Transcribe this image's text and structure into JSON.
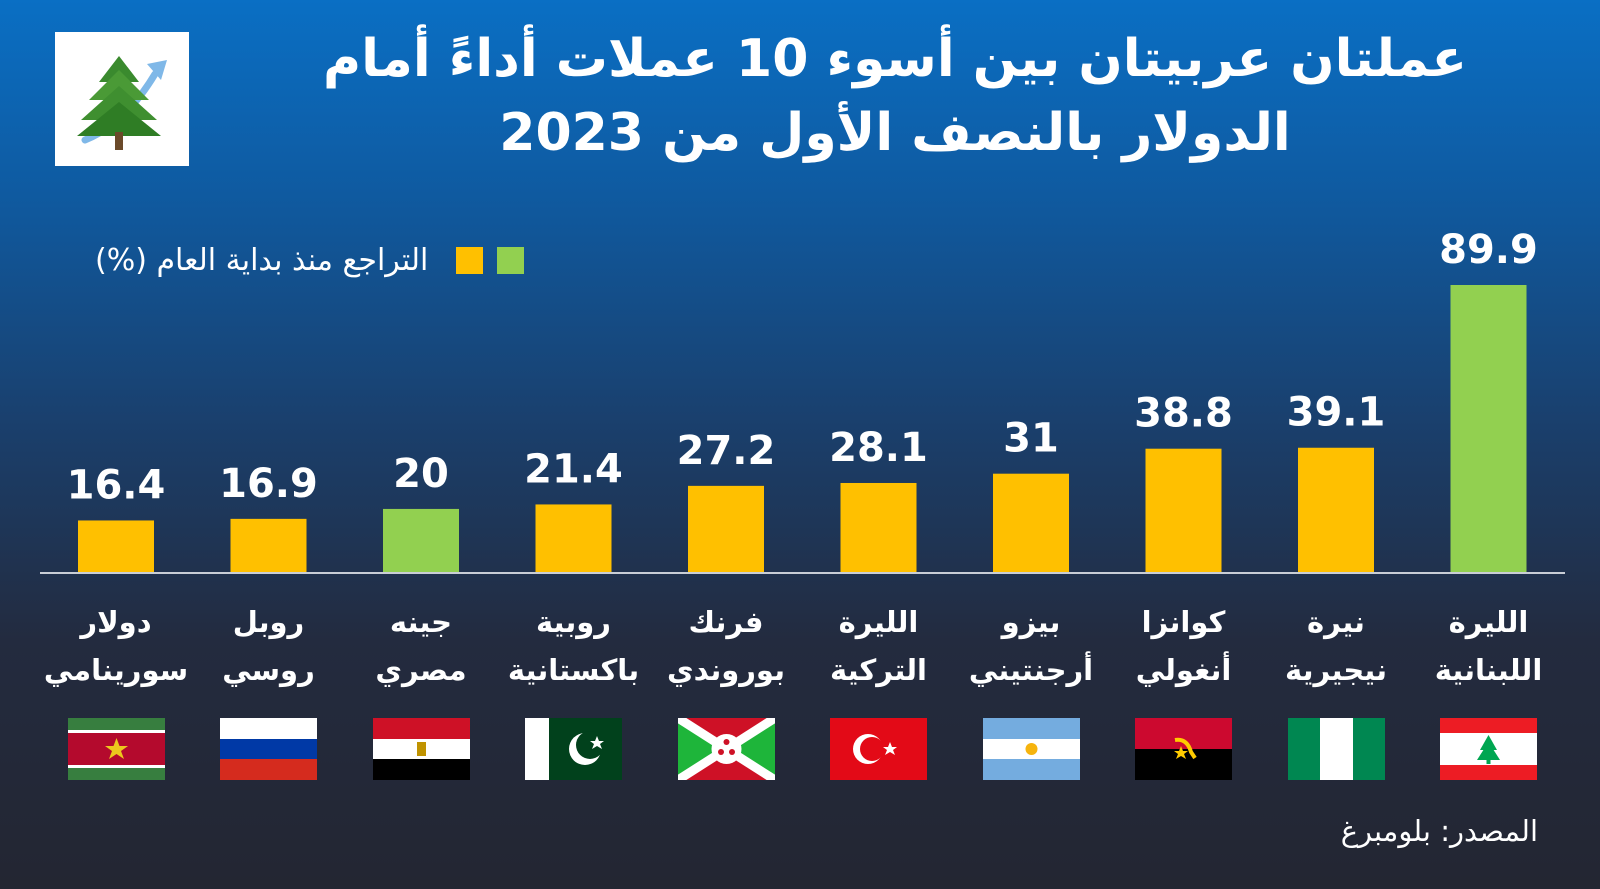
{
  "title": {
    "line1": "عملتان عربيتان بين أسوء 10 عملات أداءً أمام",
    "line2": "الدولار بالنصف الأول من 2023"
  },
  "legend": {
    "label": "التراجع منذ بداية العام (%)",
    "colors": [
      "#ffc000",
      "#92d050"
    ]
  },
  "source": "المصدر: بلومبرغ",
  "colors": {
    "highlight": "#92d050",
    "default": "#ffc000",
    "axis": "#c9ced6"
  },
  "chart_data": {
    "type": "bar",
    "ylabel": "التراجع منذ بداية العام (%)",
    "ylim": [
      0,
      90
    ],
    "categories": [
      "دولار سورينامي",
      "روبل روسي",
      "جينه مصري",
      "روبية باكستانية",
      "فرنك بوروندي",
      "الليرة التركية",
      "بيزو أرجنتيني",
      "كوانزا أنغولي",
      "نيرة نيجيرية",
      "الليرة اللبنانية"
    ],
    "values": [
      16.4,
      16.9,
      20,
      21.4,
      27.2,
      28.1,
      31,
      38.8,
      39.1,
      89.9
    ],
    "value_labels": [
      "16.4",
      "16.9",
      "20",
      "21.4",
      "27.2",
      "28.1",
      "31",
      "38.8",
      "39.1",
      "89.9"
    ],
    "label_lines": [
      [
        "دولار",
        "سورينامي"
      ],
      [
        "روبل",
        "روسي"
      ],
      [
        "جينه",
        "مصري"
      ],
      [
        "روبية",
        "باكستانية"
      ],
      [
        "فرنك",
        "بوروندي"
      ],
      [
        "الليرة",
        "التركية"
      ],
      [
        "بيزو",
        "أرجنتيني"
      ],
      [
        "كوانزا",
        "أنغولي"
      ],
      [
        "نيرة",
        "نيجيرية"
      ],
      [
        "الليرة",
        "اللبنانية"
      ]
    ],
    "highlight": [
      false,
      false,
      true,
      false,
      false,
      false,
      false,
      false,
      false,
      true
    ],
    "flags": [
      "suriname-flag",
      "russia-flag",
      "egypt-flag",
      "pakistan-flag",
      "burundi-flag",
      "turkey-flag",
      "argentina-flag",
      "angola-flag",
      "nigeria-flag",
      "lebanon-flag"
    ],
    "grid": false
  }
}
